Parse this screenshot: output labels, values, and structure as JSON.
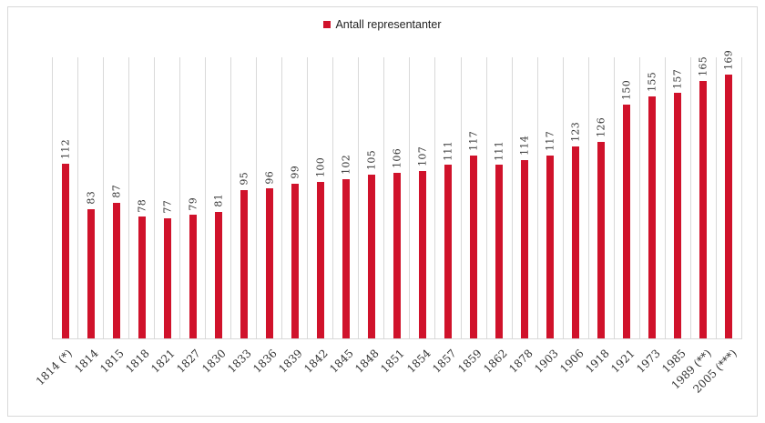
{
  "legend": {
    "label": "Antall representanter"
  },
  "colors": {
    "bar": "#D0122B",
    "gridline": "#D9D9D9",
    "frame_border": "#D9D9D9",
    "axis_line": "#D9D9D9",
    "label_text": "#333333",
    "legend_text": "#1F1F1F"
  },
  "chart_data": {
    "type": "bar",
    "title": "",
    "legend_entries": [
      "Antall representanter"
    ],
    "legend_position": "top-center",
    "xlabel": "",
    "ylabel": "",
    "ylim": [
      0,
      180
    ],
    "y_axis_labels_visible": false,
    "gridlines": "vertical category separators only",
    "value_label_style": "rotated 90deg above each bar",
    "category_label_style": "rotated 45deg below axis",
    "categories": [
      "1814 (*)",
      "1814",
      "1815",
      "1818",
      "1821",
      "1827",
      "1830",
      "1833",
      "1836",
      "1839",
      "1842",
      "1845",
      "1848",
      "1851",
      "1854",
      "1857",
      "1859",
      "1862",
      "1878",
      "1903",
      "1906",
      "1918",
      "1921",
      "1973",
      "1985",
      "1989 (**)",
      "2005 (***)"
    ],
    "values": [
      112,
      83,
      87,
      78,
      77,
      79,
      81,
      95,
      96,
      99,
      100,
      102,
      105,
      106,
      107,
      111,
      117,
      111,
      114,
      117,
      123,
      126,
      150,
      155,
      157,
      165,
      169
    ]
  }
}
